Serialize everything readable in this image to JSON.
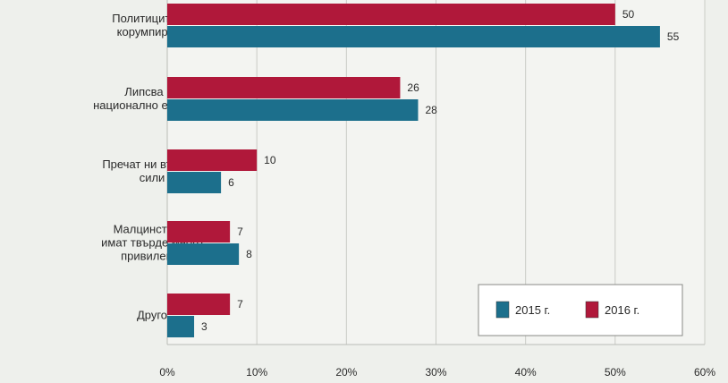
{
  "chart_data": {
    "type": "bar",
    "orientation": "horizontal",
    "categories": [
      [
        "Политиците са",
        "корумпирани"
      ],
      [
        "Липсва ни",
        "национално единство"
      ],
      [
        "Пречат ни външни",
        "сили"
      ],
      [
        "Малцинствата",
        "имат твърде много",
        "привилегии"
      ],
      [
        "Друго"
      ]
    ],
    "series": [
      {
        "name": "2016 г.",
        "color": "#b0183a",
        "values": [
          50,
          26,
          10,
          7,
          7
        ]
      },
      {
        "name": "2015 г.",
        "color": "#1c6f8c",
        "values": [
          55,
          28,
          6,
          8,
          3
        ]
      }
    ],
    "xlim": [
      0,
      60
    ],
    "xticks": [
      "0%",
      "10%",
      "20%",
      "30%",
      "40%",
      "50%",
      "60%"
    ],
    "grid": true,
    "legend": {
      "position": "bottom-right",
      "order": [
        "2015 г.",
        "2016 г."
      ]
    }
  }
}
